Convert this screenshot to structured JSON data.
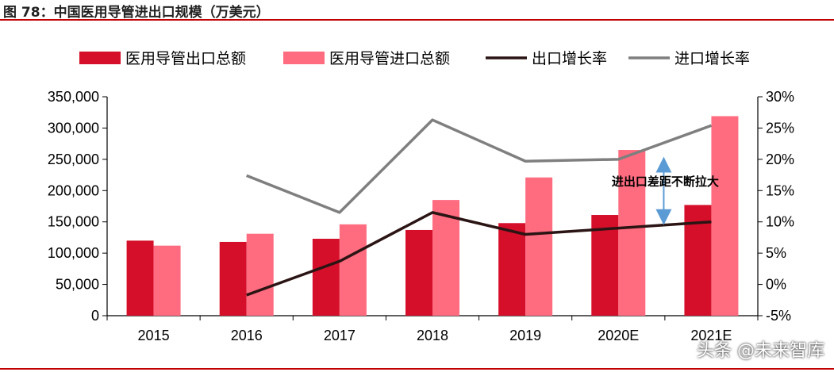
{
  "title": "图 78：中国医用导管进出口规模（万美元）",
  "watermark": "头条 @未来智库",
  "chart_data": {
    "type": "bar",
    "categories": [
      "2015",
      "2016",
      "2017",
      "2018",
      "2019",
      "2020E",
      "2021E"
    ],
    "series": [
      {
        "name": "医用导管出口总额",
        "kind": "bar",
        "axis": "left",
        "color": "#d50f2a",
        "values": [
          120000,
          118000,
          123000,
          137000,
          148000,
          161000,
          177000
        ]
      },
      {
        "name": "医用导管进口总额",
        "kind": "bar",
        "axis": "left",
        "color": "#ff6b7f",
        "values": [
          112000,
          131000,
          146000,
          185000,
          221000,
          265000,
          319000
        ]
      },
      {
        "name": "出口增长率",
        "kind": "line",
        "axis": "right",
        "color": "#2b1414",
        "values": [
          null,
          -1.7,
          3.7,
          11.5,
          8.0,
          9.0,
          10.0
        ]
      },
      {
        "name": "进口增长率",
        "kind": "line",
        "axis": "right",
        "color": "#7f7f7f",
        "values": [
          null,
          17.4,
          11.5,
          26.3,
          19.7,
          20.0,
          25.4
        ]
      }
    ],
    "y_left": {
      "min": 0,
      "max": 350000,
      "step": 50000
    },
    "y_right": {
      "min": -5,
      "max": 30,
      "step": 5,
      "unit": "%"
    },
    "left_tick_labels": [
      "0",
      "50,000",
      "100,000",
      "150,000",
      "200,000",
      "250,000",
      "300,000",
      "350,000"
    ],
    "right_tick_labels": [
      "-5%",
      "0%",
      "5%",
      "10%",
      "15%",
      "20%",
      "25%",
      "30%"
    ],
    "legend_position": "top",
    "grid": false,
    "annotation": {
      "text": "进出口差距不断拉大",
      "category": "2021E",
      "from": 249000,
      "to": 150000
    }
  }
}
